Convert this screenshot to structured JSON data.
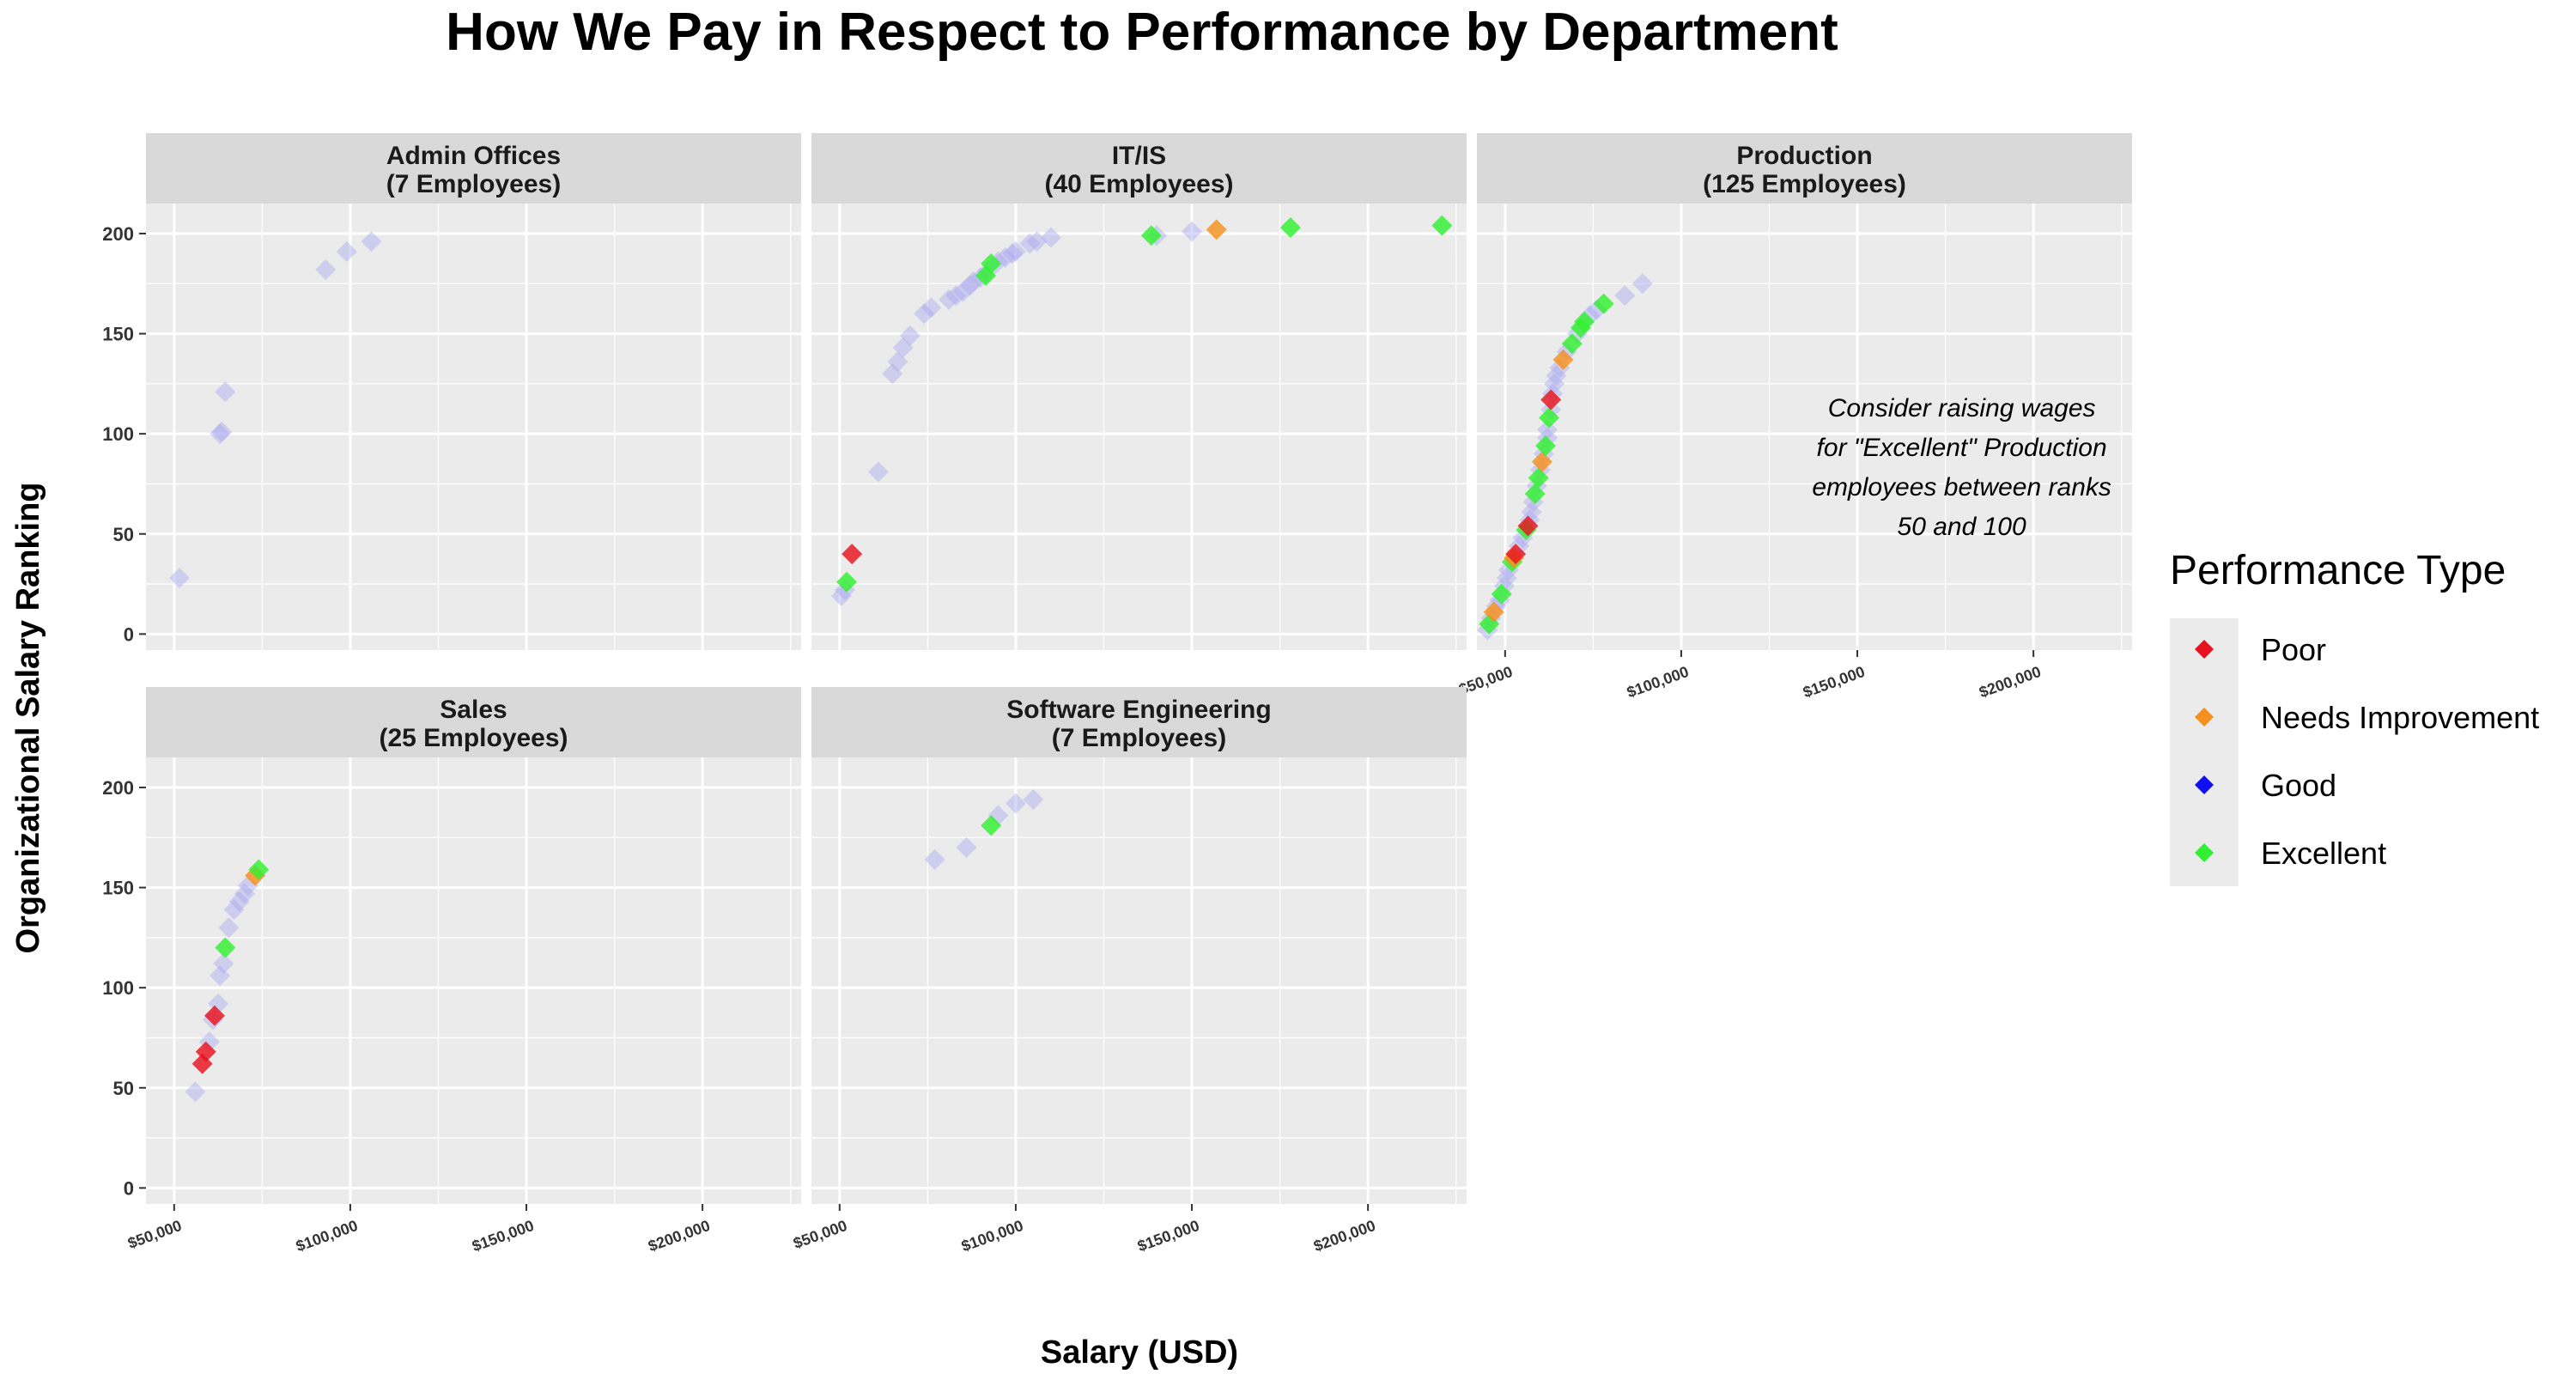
{
  "chart_data": {
    "type": "scatter",
    "title": "How We Pay in Respect to Performance by Department",
    "xlabel": "Salary (USD)",
    "ylabel": "Organizational Salary Ranking",
    "xlim": [
      42000,
      228000
    ],
    "ylim": [
      -8,
      215
    ],
    "x_ticks": [
      50000,
      100000,
      150000,
      200000
    ],
    "x_tick_labels": [
      "$50,000",
      "$100,000",
      "$150,000",
      "$200,000"
    ],
    "y_ticks": [
      0,
      50,
      100,
      150,
      200
    ],
    "y_tick_labels": [
      "0",
      "50",
      "100",
      "150",
      "200"
    ],
    "grid": true,
    "legend": {
      "title": "Performance Type",
      "position": "right",
      "items": [
        {
          "label": "Poor",
          "color": "#e8121e"
        },
        {
          "label": "Needs Improvement",
          "color": "#f5901e"
        },
        {
          "label": "Good",
          "color": "#1010f0"
        },
        {
          "label": "Excellent",
          "color": "#30f030"
        }
      ]
    },
    "annotation": {
      "panel": "Production",
      "lines": [
        "Consider raising wages",
        "for \"Excellent\" Production",
        "employees between ranks",
        "50 and 100"
      ]
    },
    "panels": [
      {
        "name": "Admin Offices",
        "title_lines": [
          "Admin Offices",
          "(7 Employees)"
        ],
        "points": [
          {
            "x": 51500,
            "y": 28,
            "p": "Good"
          },
          {
            "x": 63000,
            "y": 100,
            "p": "Good"
          },
          {
            "x": 63500,
            "y": 101,
            "p": "Good"
          },
          {
            "x": 64500,
            "y": 121,
            "p": "Good"
          },
          {
            "x": 93000,
            "y": 182,
            "p": "Good"
          },
          {
            "x": 99000,
            "y": 191,
            "p": "Good"
          },
          {
            "x": 106000,
            "y": 196,
            "p": "Good"
          }
        ]
      },
      {
        "name": "IT/IS",
        "title_lines": [
          "IT/IS",
          "(40 Employees)"
        ],
        "points": [
          {
            "x": 50500,
            "y": 19,
            "p": "Good"
          },
          {
            "x": 51500,
            "y": 22,
            "p": "Good"
          },
          {
            "x": 52000,
            "y": 26,
            "p": "Excellent"
          },
          {
            "x": 53500,
            "y": 40,
            "p": "Poor"
          },
          {
            "x": 61000,
            "y": 81,
            "p": "Good"
          },
          {
            "x": 65000,
            "y": 130,
            "p": "Good"
          },
          {
            "x": 66500,
            "y": 136,
            "p": "Good"
          },
          {
            "x": 68000,
            "y": 143,
            "p": "Good"
          },
          {
            "x": 70000,
            "y": 149,
            "p": "Good"
          },
          {
            "x": 74000,
            "y": 160,
            "p": "Good"
          },
          {
            "x": 76000,
            "y": 163,
            "p": "Good"
          },
          {
            "x": 81000,
            "y": 167,
            "p": "Good"
          },
          {
            "x": 83000,
            "y": 169,
            "p": "Good"
          },
          {
            "x": 85000,
            "y": 171,
            "p": "Good"
          },
          {
            "x": 87000,
            "y": 174,
            "p": "Good"
          },
          {
            "x": 88000,
            "y": 176,
            "p": "Good"
          },
          {
            "x": 90000,
            "y": 178,
            "p": "Good"
          },
          {
            "x": 91500,
            "y": 179,
            "p": "Excellent"
          },
          {
            "x": 92000,
            "y": 181,
            "p": "Good"
          },
          {
            "x": 93000,
            "y": 185,
            "p": "Excellent"
          },
          {
            "x": 95000,
            "y": 186,
            "p": "Good"
          },
          {
            "x": 97000,
            "y": 188,
            "p": "Good"
          },
          {
            "x": 99000,
            "y": 190,
            "p": "Good"
          },
          {
            "x": 100000,
            "y": 191,
            "p": "Good"
          },
          {
            "x": 104000,
            "y": 195,
            "p": "Good"
          },
          {
            "x": 106000,
            "y": 196,
            "p": "Good"
          },
          {
            "x": 110000,
            "y": 198,
            "p": "Good"
          },
          {
            "x": 140000,
            "y": 199,
            "p": "Good"
          },
          {
            "x": 138500,
            "y": 199,
            "p": "Excellent"
          },
          {
            "x": 150000,
            "y": 201,
            "p": "Good"
          },
          {
            "x": 157000,
            "y": 202,
            "p": "Needs Improvement"
          },
          {
            "x": 178000,
            "y": 203,
            "p": "Excellent"
          },
          {
            "x": 221000,
            "y": 204,
            "p": "Excellent"
          }
        ]
      },
      {
        "name": "Production",
        "title_lines": [
          "Production",
          "(125 Employees)"
        ],
        "points": [
          {
            "x": 45000,
            "y": 2,
            "p": "Good"
          },
          {
            "x": 45500,
            "y": 5,
            "p": "Excellent"
          },
          {
            "x": 46000,
            "y": 8,
            "p": "Good"
          },
          {
            "x": 46800,
            "y": 11,
            "p": "Needs Improvement"
          },
          {
            "x": 47500,
            "y": 14,
            "p": "Good"
          },
          {
            "x": 48500,
            "y": 17,
            "p": "Good"
          },
          {
            "x": 49000,
            "y": 20,
            "p": "Excellent"
          },
          {
            "x": 49800,
            "y": 24,
            "p": "Good"
          },
          {
            "x": 50500,
            "y": 28,
            "p": "Good"
          },
          {
            "x": 51000,
            "y": 32,
            "p": "Good"
          },
          {
            "x": 52000,
            "y": 36,
            "p": "Excellent"
          },
          {
            "x": 52500,
            "y": 38,
            "p": "Needs Improvement"
          },
          {
            "x": 53000,
            "y": 40,
            "p": "Poor"
          },
          {
            "x": 54000,
            "y": 44,
            "p": "Good"
          },
          {
            "x": 55000,
            "y": 48,
            "p": "Good"
          },
          {
            "x": 56000,
            "y": 52,
            "p": "Excellent"
          },
          {
            "x": 56500,
            "y": 54,
            "p": "Poor"
          },
          {
            "x": 57000,
            "y": 57,
            "p": "Good"
          },
          {
            "x": 57500,
            "y": 61,
            "p": "Good"
          },
          {
            "x": 58000,
            "y": 66,
            "p": "Good"
          },
          {
            "x": 58500,
            "y": 70,
            "p": "Excellent"
          },
          {
            "x": 59000,
            "y": 74,
            "p": "Good"
          },
          {
            "x": 59500,
            "y": 78,
            "p": "Excellent"
          },
          {
            "x": 60000,
            "y": 82,
            "p": "Good"
          },
          {
            "x": 60500,
            "y": 86,
            "p": "Needs Improvement"
          },
          {
            "x": 61000,
            "y": 90,
            "p": "Good"
          },
          {
            "x": 61500,
            "y": 94,
            "p": "Excellent"
          },
          {
            "x": 62000,
            "y": 98,
            "p": "Good"
          },
          {
            "x": 62000,
            "y": 102,
            "p": "Good"
          },
          {
            "x": 62500,
            "y": 108,
            "p": "Excellent"
          },
          {
            "x": 63000,
            "y": 112,
            "p": "Good"
          },
          {
            "x": 63000,
            "y": 117,
            "p": "Poor"
          },
          {
            "x": 63500,
            "y": 120,
            "p": "Good"
          },
          {
            "x": 64000,
            "y": 125,
            "p": "Good"
          },
          {
            "x": 64500,
            "y": 129,
            "p": "Good"
          },
          {
            "x": 65500,
            "y": 133,
            "p": "Good"
          },
          {
            "x": 66500,
            "y": 137,
            "p": "Needs Improvement"
          },
          {
            "x": 67500,
            "y": 141,
            "p": "Good"
          },
          {
            "x": 69000,
            "y": 145,
            "p": "Excellent"
          },
          {
            "x": 70500,
            "y": 150,
            "p": "Good"
          },
          {
            "x": 71500,
            "y": 153,
            "p": "Excellent"
          },
          {
            "x": 72500,
            "y": 156,
            "p": "Excellent"
          },
          {
            "x": 74000,
            "y": 159,
            "p": "Good"
          },
          {
            "x": 76000,
            "y": 162,
            "p": "Good"
          },
          {
            "x": 78000,
            "y": 165,
            "p": "Excellent"
          },
          {
            "x": 84000,
            "y": 169,
            "p": "Good"
          },
          {
            "x": 89000,
            "y": 175,
            "p": "Good"
          }
        ]
      },
      {
        "name": "Sales",
        "title_lines": [
          "Sales",
          "(25 Employees)"
        ],
        "points": [
          {
            "x": 56000,
            "y": 48,
            "p": "Good"
          },
          {
            "x": 58000,
            "y": 62,
            "p": "Poor"
          },
          {
            "x": 59000,
            "y": 68,
            "p": "Poor"
          },
          {
            "x": 60000,
            "y": 73,
            "p": "Good"
          },
          {
            "x": 61000,
            "y": 84,
            "p": "Good"
          },
          {
            "x": 61500,
            "y": 86,
            "p": "Poor"
          },
          {
            "x": 62500,
            "y": 92,
            "p": "Good"
          },
          {
            "x": 63000,
            "y": 106,
            "p": "Good"
          },
          {
            "x": 64000,
            "y": 112,
            "p": "Good"
          },
          {
            "x": 64500,
            "y": 120,
            "p": "Excellent"
          },
          {
            "x": 65500,
            "y": 130,
            "p": "Good"
          },
          {
            "x": 67000,
            "y": 139,
            "p": "Good"
          },
          {
            "x": 68500,
            "y": 143,
            "p": "Good"
          },
          {
            "x": 70000,
            "y": 147,
            "p": "Good"
          },
          {
            "x": 71000,
            "y": 151,
            "p": "Good"
          },
          {
            "x": 73000,
            "y": 156,
            "p": "Needs Improvement"
          },
          {
            "x": 74000,
            "y": 159,
            "p": "Excellent"
          }
        ]
      },
      {
        "name": "Software Engineering",
        "title_lines": [
          "Software Engineering",
          "(7 Employees)"
        ],
        "points": [
          {
            "x": 77000,
            "y": 164,
            "p": "Good"
          },
          {
            "x": 86000,
            "y": 170,
            "p": "Good"
          },
          {
            "x": 93000,
            "y": 181,
            "p": "Excellent"
          },
          {
            "x": 95000,
            "y": 186,
            "p": "Good"
          },
          {
            "x": 100000,
            "y": 192,
            "p": "Good"
          },
          {
            "x": 105000,
            "y": 194,
            "p": "Good"
          }
        ]
      }
    ]
  }
}
